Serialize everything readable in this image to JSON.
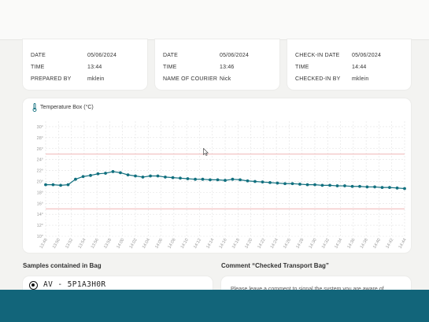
{
  "cards": [
    {
      "rows": [
        {
          "label": "DATE",
          "value": "05/06/2024"
        },
        {
          "label": "TIME",
          "value": "13:44"
        },
        {
          "label": "PREPARED BY",
          "value": "mklein"
        }
      ]
    },
    {
      "rows": [
        {
          "label": "DATE",
          "value": "05/06/2024"
        },
        {
          "label": "TIME",
          "value": "13:46"
        },
        {
          "label": "NAME OF COURIER",
          "value": "Nick"
        }
      ]
    },
    {
      "rows": [
        {
          "label": "CHECK-IN DATE",
          "value": "05/06/2024"
        },
        {
          "label": "TIME",
          "value": "14:44"
        },
        {
          "label": "CHECKED-IN BY",
          "value": "mklein"
        }
      ]
    }
  ],
  "chart_title": "Temperature Box (°C)",
  "chart_data": {
    "type": "line",
    "title": "Temperature Box (°C)",
    "y_ticks": [
      "30°",
      "28°",
      "26°",
      "24°",
      "22°",
      "20°",
      "18°",
      "16°",
      "14°",
      "12°",
      "10°"
    ],
    "ylim": [
      10,
      31
    ],
    "x_ticks": [
      "13:48",
      "13:50",
      "13:52",
      "13:54",
      "13:56",
      "13:58",
      "14:00",
      "14:02",
      "14:04",
      "14:06",
      "14:08",
      "14:10",
      "14:12",
      "14:14",
      "14:16",
      "14:18",
      "14:20",
      "14:22",
      "14:24",
      "14:26",
      "14:28",
      "14:30",
      "14:32",
      "14:34",
      "14:36",
      "14:38",
      "14:40",
      "14:42",
      "14:44"
    ],
    "xlim": [
      0,
      28
    ],
    "upper_limit": 25,
    "lower_limit": 15,
    "series": [
      {
        "color": "#12707f",
        "x": [
          0,
          0.58,
          1.17,
          1.75,
          2.33,
          2.92,
          3.5,
          4.08,
          4.67,
          5.25,
          5.83,
          6.42,
          7,
          7.58,
          8.17,
          8.75,
          9.33,
          9.92,
          10.5,
          11.08,
          11.67,
          12.25,
          12.83,
          13.42,
          14,
          14.58,
          15.17,
          15.75,
          16.33,
          16.92,
          17.5,
          18.08,
          18.67,
          19.25,
          19.83,
          20.42,
          21,
          21.58,
          22.17,
          22.75,
          23.33,
          23.92,
          24.5,
          25.08,
          25.67,
          26.25,
          26.83,
          27.42,
          28
        ],
        "y": [
          19.4,
          19.4,
          19.3,
          19.4,
          20.4,
          20.9,
          21.1,
          21.4,
          21.5,
          21.8,
          21.6,
          21.2,
          21,
          20.8,
          21,
          21,
          20.8,
          20.7,
          20.6,
          20.5,
          20.4,
          20.4,
          20.3,
          20.3,
          20.2,
          20.4,
          20.3,
          20.1,
          20,
          19.9,
          19.8,
          19.7,
          19.6,
          19.6,
          19.5,
          19.4,
          19.4,
          19.3,
          19.3,
          19.2,
          19.2,
          19.1,
          19.1,
          19,
          19,
          18.9,
          18.9,
          18.8,
          18.7
        ]
      }
    ],
    "limit_color": "#f0b6b6"
  },
  "samples_title": "Samples contained in Bag",
  "comment_title": "Comment “Checked Transport Bag”",
  "sample_item": "AV - 5P1A3H0R",
  "comment_placeholder": "Please leave a comment to signal the system you are aware of"
}
